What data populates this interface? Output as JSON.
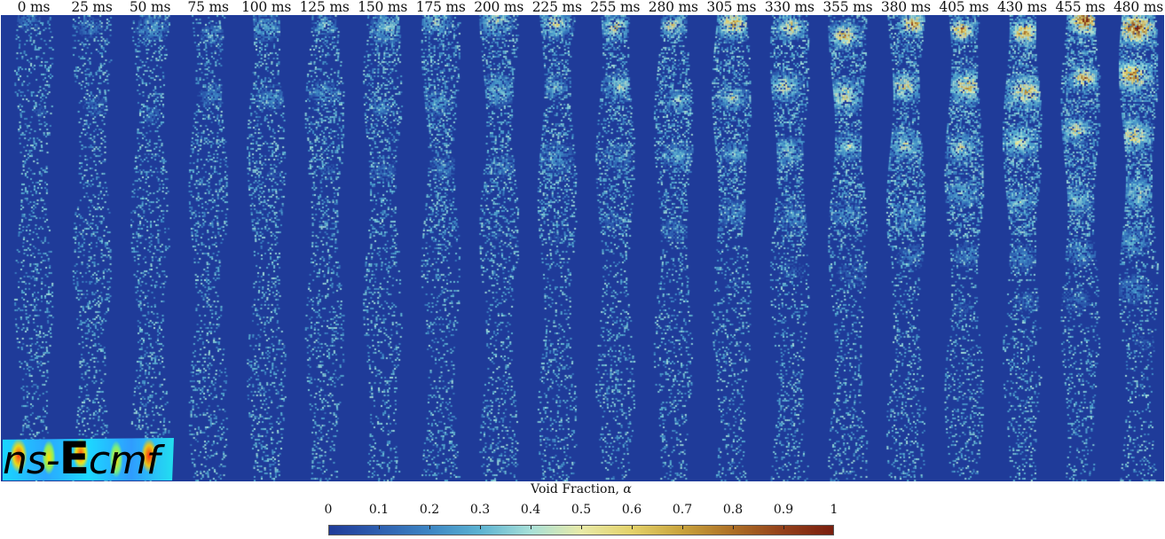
{
  "figure": {
    "background_color": "#1f3b99",
    "time_labels": [
      "0 ms",
      "25 ms",
      "50 ms",
      "75 ms",
      "100 ms",
      "125 ms",
      "150 ms",
      "175 ms",
      "200 ms",
      "225 ms",
      "255 ms",
      "280 ms",
      "305 ms",
      "330 ms",
      "355 ms",
      "380 ms",
      "405 ms",
      "430 ms",
      "455 ms",
      "480 ms"
    ],
    "logo": {
      "prefix": "ns-",
      "emphasis": "E",
      "suffix": "cmf"
    },
    "colorbar": {
      "title": "Void Fraction, ",
      "symbol": "α",
      "tick_labels": [
        "0",
        "0.1",
        "0.2",
        "0.3",
        "0.4",
        "0.5",
        "0.6",
        "0.7",
        "0.8",
        "0.9",
        "1"
      ],
      "colormap_stops": [
        "#1f3b99",
        "#2e5fb0",
        "#3d86c4",
        "#5cb3d2",
        "#a8e0d8",
        "#e8eaa8",
        "#e4d26a",
        "#c9a33c",
        "#ad6f26",
        "#93401a",
        "#7a1e0e"
      ]
    }
  },
  "chart_data": {
    "type": "heatmap",
    "title": "",
    "colorbar_label": "Void Fraction, α",
    "value_range": [
      0,
      1
    ],
    "colorbar_ticks": [
      0,
      0.1,
      0.2,
      0.3,
      0.4,
      0.5,
      0.6,
      0.7,
      0.8,
      0.9,
      1
    ],
    "panels": [
      "0 ms",
      "25 ms",
      "50 ms",
      "75 ms",
      "100 ms",
      "125 ms",
      "150 ms",
      "175 ms",
      "200 ms",
      "225 ms",
      "255 ms",
      "280 ms",
      "305 ms",
      "330 ms",
      "355 ms",
      "380 ms",
      "405 ms",
      "430 ms",
      "455 ms",
      "480 ms"
    ],
    "time_ms": [
      0,
      25,
      50,
      75,
      100,
      125,
      150,
      175,
      200,
      225,
      255,
      280,
      305,
      330,
      355,
      380,
      405,
      430,
      455,
      480
    ],
    "description": "Time series of void fraction snapshots in a vertical bubble column; gas voids grow and concentrate toward the top over time, with high void fraction (0.8–1) clusters prominent from ~175 ms onward."
  }
}
